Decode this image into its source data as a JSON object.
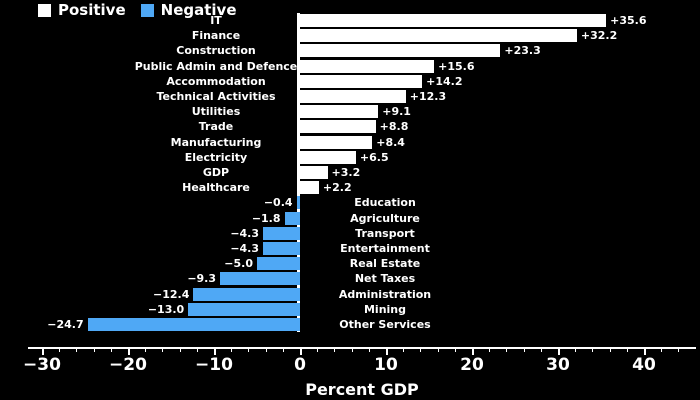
{
  "colors": {
    "background": "#000000",
    "positive": "#ffffff",
    "negative": "#4fa8f5",
    "text": "#ffffff"
  },
  "legend": {
    "positive_label": "Positive",
    "negative_label": "Negative"
  },
  "chart_data": {
    "type": "bar",
    "orientation": "horizontal",
    "title": "",
    "xlabel": "Percent GDP",
    "xlim": [
      -31.5,
      46
    ],
    "x_major_ticks": [
      -30,
      -20,
      -10,
      0,
      10,
      20,
      30,
      40
    ],
    "x_major_tick_labels": [
      "−30",
      "−20",
      "−10",
      "0",
      "10",
      "20",
      "30",
      "40"
    ],
    "x_minor_tick_step": 2,
    "grid": false,
    "legend_position": "top-left",
    "legend_entries": [
      "Positive",
      "Negative"
    ],
    "bars": [
      {
        "label": "IT",
        "value": 35.6,
        "display": "+35.6"
      },
      {
        "label": "Finance",
        "value": 32.2,
        "display": "+32.2"
      },
      {
        "label": "Construction",
        "value": 23.3,
        "display": "+23.3"
      },
      {
        "label": "Public Admin and Defence",
        "value": 15.6,
        "display": "+15.6"
      },
      {
        "label": "Accommodation",
        "value": 14.2,
        "display": "+14.2"
      },
      {
        "label": "Technical Activities",
        "value": 12.3,
        "display": "+12.3"
      },
      {
        "label": "Utilities",
        "value": 9.1,
        "display": "+9.1"
      },
      {
        "label": "Trade",
        "value": 8.8,
        "display": "+8.8"
      },
      {
        "label": "Manufacturing",
        "value": 8.4,
        "display": "+8.4"
      },
      {
        "label": "Electricity",
        "value": 6.5,
        "display": "+6.5"
      },
      {
        "label": "GDP",
        "value": 3.2,
        "display": "+3.2"
      },
      {
        "label": "Healthcare",
        "value": 2.2,
        "display": "+2.2"
      },
      {
        "label": "Education",
        "value": -0.4,
        "display": "−0.4"
      },
      {
        "label": "Agriculture",
        "value": -1.8,
        "display": "−1.8"
      },
      {
        "label": "Transport",
        "value": -4.3,
        "display": "−4.3"
      },
      {
        "label": "Entertainment",
        "value": -4.3,
        "display": "−4.3"
      },
      {
        "label": "Real Estate",
        "value": -5.0,
        "display": "−5.0"
      },
      {
        "label": "Net Taxes",
        "value": -9.3,
        "display": "−9.3"
      },
      {
        "label": "Administration",
        "value": -12.4,
        "display": "−12.4"
      },
      {
        "label": "Mining",
        "value": -13.0,
        "display": "−13.0"
      },
      {
        "label": "Other Services",
        "value": -24.7,
        "display": "−24.7"
      }
    ]
  }
}
